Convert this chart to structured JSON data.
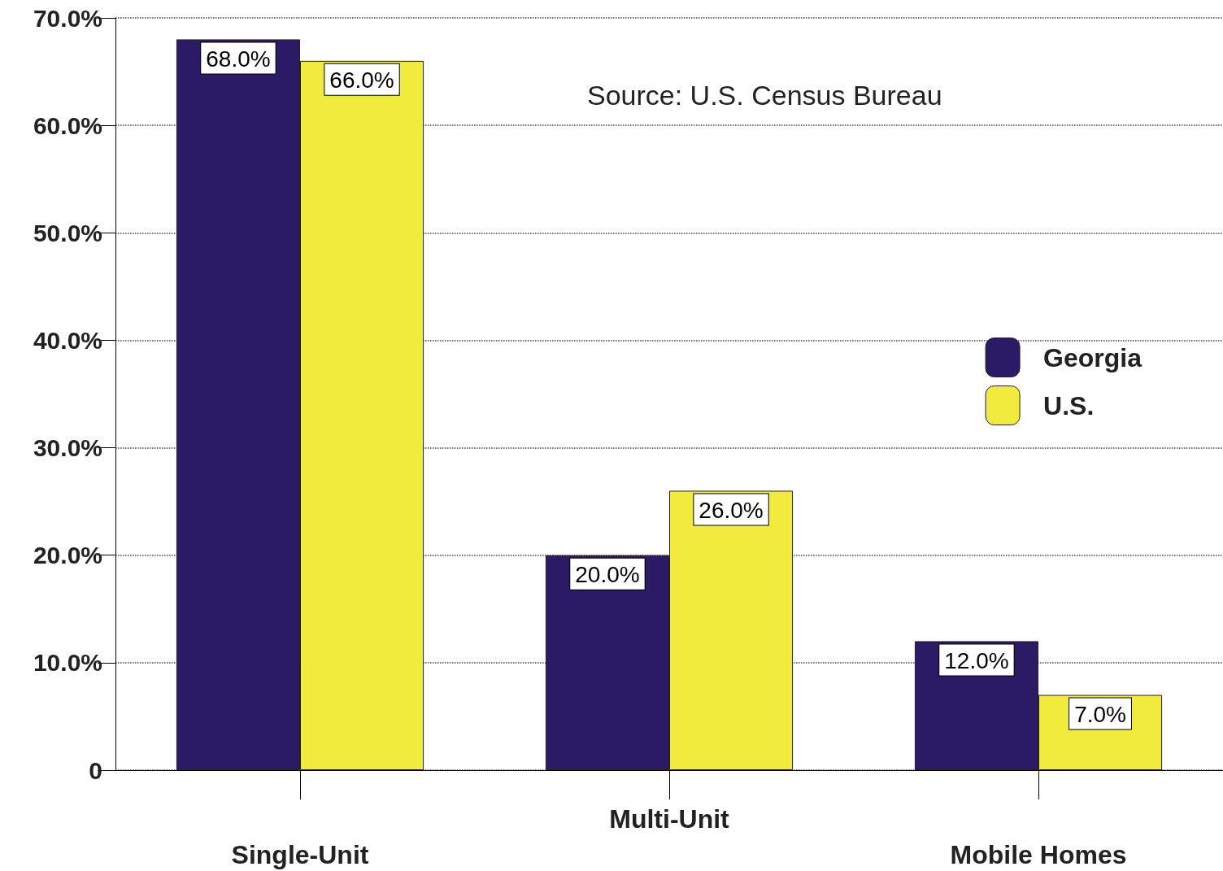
{
  "chart_data": {
    "type": "bar",
    "categories": [
      "Single-Unit",
      "Multi-Unit",
      "Mobile Homes"
    ],
    "series": [
      {
        "name": "Georgia",
        "color": "#2b1b66",
        "values": [
          68,
          20,
          12
        ],
        "value_labels": [
          "68.0%",
          "20.0%",
          "12.0%"
        ]
      },
      {
        "name": "U.S.",
        "color": "#f0eb3c",
        "values": [
          66,
          26,
          7
        ],
        "value_labels": [
          "66.0%",
          "26.0%",
          "7.0%"
        ]
      }
    ],
    "ylim": [
      0,
      70
    ],
    "yticks": [
      0,
      {
        "value": 10,
        "label": "10.0%"
      },
      {
        "value": 20,
        "label": "20.0%"
      },
      {
        "value": 30,
        "label": "30.0%"
      },
      {
        "value": 40,
        "label": "40.0%"
      },
      {
        "value": 50,
        "label": "50.0%"
      },
      {
        "value": 60,
        "label": "60.0%"
      },
      {
        "value": 70,
        "label": "70.0%"
      }
    ],
    "annotations": [
      "Source: U.S. Census Bureau"
    ],
    "grid": "y",
    "legend": "right"
  }
}
